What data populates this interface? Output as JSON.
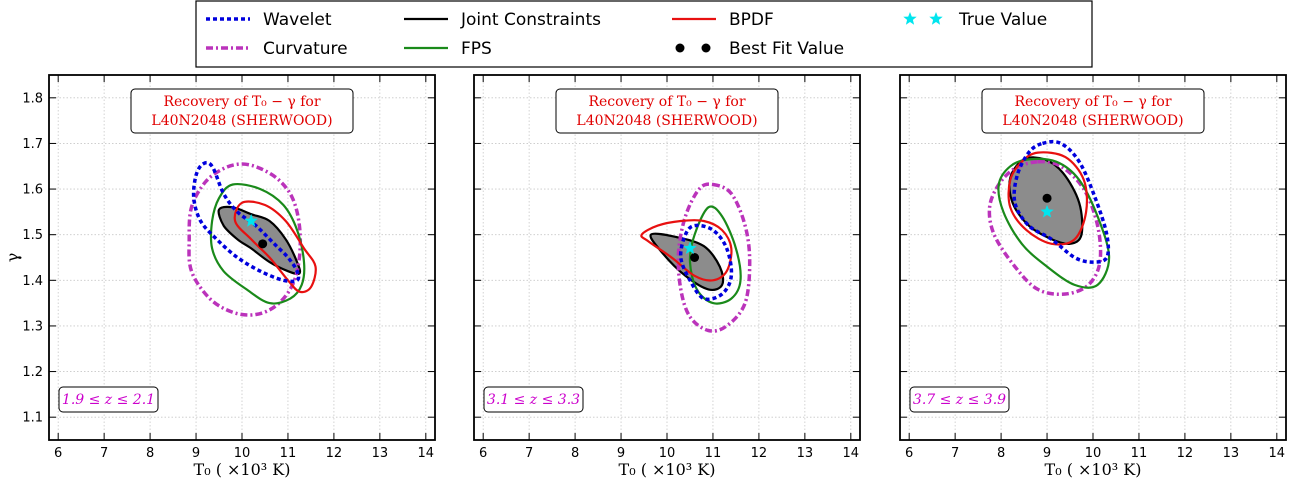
{
  "legend": {
    "entries": [
      {
        "label": "Wavelet",
        "color": "#0000dd",
        "style": "dotted"
      },
      {
        "label": "Curvature",
        "color": "#bb33bb",
        "style": "dashdot"
      },
      {
        "label": "Joint Constraints",
        "color": "#000000",
        "style": "solid"
      },
      {
        "label": "FPS",
        "color": "#1a8a1a",
        "style": "solid"
      },
      {
        "label": "BPDF",
        "color": "#e81010",
        "style": "solid"
      },
      {
        "label": "Best Fit Value",
        "color": "#000000",
        "style": "dot"
      },
      {
        "label": "True Value",
        "color": "#00e5ee",
        "style": "star"
      }
    ]
  },
  "chart_data": [
    {
      "type": "scatter",
      "panel_title": "Recovery of T₀ − γ for\nL40N2048 (SHERWOOD)",
      "title_lines": [
        "Recovery of T₀ − γ for",
        "L40N2048 (SHERWOOD)"
      ],
      "redshift_label": "1.9 ≤ z ≤ 2.1",
      "xlabel": "T₀ ( ×10³ K)",
      "ylabel": "γ",
      "xlim": [
        5.8,
        14.2
      ],
      "ylim": [
        1.05,
        1.85
      ],
      "xticks": [
        "6",
        "7",
        "8",
        "9",
        "10",
        "11",
        "12",
        "13",
        "14"
      ],
      "yticks": [
        "1.1",
        "1.2",
        "1.3",
        "1.4",
        "1.5",
        "1.6",
        "1.7",
        "1.8"
      ],
      "grid": true,
      "best_fit": [
        10.45,
        1.48
      ],
      "true_value": [
        10.2,
        1.53
      ],
      "contours": {
        "wavelet": [
          [
            9.15,
            1.655
          ],
          [
            9.35,
            1.65
          ],
          [
            9.6,
            1.59
          ],
          [
            9.9,
            1.55
          ],
          [
            10.3,
            1.52
          ],
          [
            10.7,
            1.48
          ],
          [
            11.0,
            1.45
          ],
          [
            11.2,
            1.42
          ],
          [
            11.2,
            1.4
          ],
          [
            10.9,
            1.4
          ],
          [
            10.4,
            1.42
          ],
          [
            9.9,
            1.45
          ],
          [
            9.45,
            1.49
          ],
          [
            9.1,
            1.53
          ],
          [
            8.95,
            1.58
          ],
          [
            9.0,
            1.63
          ]
        ],
        "curvature": [
          [
            10.0,
            1.655
          ],
          [
            10.4,
            1.645
          ],
          [
            10.8,
            1.62
          ],
          [
            11.1,
            1.58
          ],
          [
            11.25,
            1.52
          ],
          [
            11.25,
            1.45
          ],
          [
            11.1,
            1.39
          ],
          [
            10.75,
            1.345
          ],
          [
            10.3,
            1.325
          ],
          [
            9.8,
            1.33
          ],
          [
            9.3,
            1.36
          ],
          [
            8.9,
            1.42
          ],
          [
            8.85,
            1.49
          ],
          [
            8.9,
            1.56
          ],
          [
            9.2,
            1.615
          ],
          [
            9.6,
            1.645
          ]
        ],
        "joint": [
          [
            9.5,
            1.555
          ],
          [
            9.8,
            1.56
          ],
          [
            10.2,
            1.545
          ],
          [
            10.6,
            1.53
          ],
          [
            10.95,
            1.49
          ],
          [
            11.2,
            1.44
          ],
          [
            11.25,
            1.415
          ],
          [
            11.0,
            1.42
          ],
          [
            10.6,
            1.44
          ],
          [
            10.2,
            1.47
          ],
          [
            9.9,
            1.49
          ],
          [
            9.6,
            1.52
          ]
        ],
        "fps": [
          [
            9.8,
            1.61
          ],
          [
            10.4,
            1.6
          ],
          [
            10.9,
            1.565
          ],
          [
            11.2,
            1.51
          ],
          [
            11.35,
            1.44
          ],
          [
            11.3,
            1.39
          ],
          [
            11.05,
            1.36
          ],
          [
            10.6,
            1.35
          ],
          [
            10.1,
            1.38
          ],
          [
            9.6,
            1.42
          ],
          [
            9.35,
            1.47
          ],
          [
            9.35,
            1.53
          ],
          [
            9.5,
            1.58
          ]
        ],
        "bpdf": [
          [
            10.0,
            1.57
          ],
          [
            10.5,
            1.565
          ],
          [
            10.95,
            1.53
          ],
          [
            11.35,
            1.47
          ],
          [
            11.6,
            1.43
          ],
          [
            11.5,
            1.385
          ],
          [
            11.25,
            1.375
          ],
          [
            11.0,
            1.4
          ],
          [
            10.6,
            1.45
          ],
          [
            10.2,
            1.49
          ],
          [
            9.85,
            1.53
          ]
        ]
      }
    },
    {
      "type": "scatter",
      "panel_title": "Recovery of T₀ − γ for\nL40N2048 (SHERWOOD)",
      "title_lines": [
        "Recovery of T₀ − γ for",
        "L40N2048 (SHERWOOD)"
      ],
      "redshift_label": "3.1 ≤ z ≤ 3.3",
      "xlabel": "T₀ ( ×10³ K)",
      "ylabel": "",
      "xlim": [
        5.8,
        14.2
      ],
      "ylim": [
        1.05,
        1.85
      ],
      "xticks": [
        "6",
        "7",
        "8",
        "9",
        "10",
        "11",
        "12",
        "13",
        "14"
      ],
      "yticks": [],
      "grid": true,
      "best_fit": [
        10.6,
        1.45
      ],
      "true_value": [
        10.5,
        1.47
      ],
      "contours": {
        "wavelet": [
          [
            10.6,
            1.52
          ],
          [
            11.0,
            1.51
          ],
          [
            11.3,
            1.47
          ],
          [
            11.4,
            1.41
          ],
          [
            11.2,
            1.37
          ],
          [
            10.8,
            1.36
          ],
          [
            10.5,
            1.4
          ],
          [
            10.3,
            1.45
          ],
          [
            10.4,
            1.5
          ]
        ],
        "curvature": [
          [
            11.0,
            1.61
          ],
          [
            11.4,
            1.59
          ],
          [
            11.7,
            1.52
          ],
          [
            11.8,
            1.44
          ],
          [
            11.7,
            1.35
          ],
          [
            11.3,
            1.3
          ],
          [
            10.9,
            1.29
          ],
          [
            10.5,
            1.32
          ],
          [
            10.3,
            1.38
          ],
          [
            10.25,
            1.46
          ],
          [
            10.4,
            1.54
          ],
          [
            10.7,
            1.6
          ]
        ],
        "joint": [
          [
            9.65,
            1.5
          ],
          [
            10.2,
            1.495
          ],
          [
            10.8,
            1.475
          ],
          [
            11.15,
            1.43
          ],
          [
            11.2,
            1.39
          ],
          [
            10.9,
            1.38
          ],
          [
            10.4,
            1.41
          ],
          [
            9.9,
            1.46
          ]
        ],
        "fps": [
          [
            10.9,
            1.56
          ],
          [
            11.2,
            1.54
          ],
          [
            11.5,
            1.47
          ],
          [
            11.6,
            1.4
          ],
          [
            11.4,
            1.36
          ],
          [
            11.0,
            1.35
          ],
          [
            10.65,
            1.38
          ],
          [
            10.5,
            1.44
          ],
          [
            10.6,
            1.5
          ]
        ],
        "bpdf": [
          [
            9.45,
            1.5
          ],
          [
            9.8,
            1.52
          ],
          [
            10.3,
            1.53
          ],
          [
            10.8,
            1.53
          ],
          [
            11.2,
            1.51
          ],
          [
            11.4,
            1.47
          ],
          [
            11.3,
            1.42
          ],
          [
            11.0,
            1.4
          ],
          [
            10.6,
            1.41
          ],
          [
            10.1,
            1.45
          ],
          [
            9.6,
            1.485
          ]
        ]
      }
    },
    {
      "type": "scatter",
      "panel_title": "Recovery of T₀ − γ for\nL40N2048 (SHERWOOD)",
      "title_lines": [
        "Recovery of T₀ − γ for",
        "L40N2048 (SHERWOOD)"
      ],
      "redshift_label": "3.7 ≤ z ≤ 3.9",
      "xlabel": "T₀ ( ×10³ K)",
      "ylabel": "",
      "xlim": [
        5.8,
        14.2
      ],
      "ylim": [
        1.05,
        1.85
      ],
      "xticks": [
        "6",
        "7",
        "8",
        "9",
        "10",
        "11",
        "12",
        "13",
        "14"
      ],
      "yticks": [],
      "grid": true,
      "best_fit": [
        9.0,
        1.58
      ],
      "true_value": [
        9.0,
        1.55
      ],
      "contours": {
        "wavelet": [
          [
            8.9,
            1.7
          ],
          [
            9.3,
            1.7
          ],
          [
            9.7,
            1.66
          ],
          [
            10.05,
            1.58
          ],
          [
            10.3,
            1.5
          ],
          [
            10.3,
            1.45
          ],
          [
            10.0,
            1.44
          ],
          [
            9.6,
            1.45
          ],
          [
            9.1,
            1.49
          ],
          [
            8.6,
            1.52
          ],
          [
            8.3,
            1.57
          ],
          [
            8.35,
            1.63
          ],
          [
            8.6,
            1.68
          ]
        ],
        "curvature": [
          [
            8.8,
            1.66
          ],
          [
            9.3,
            1.65
          ],
          [
            9.8,
            1.6
          ],
          [
            10.1,
            1.52
          ],
          [
            10.15,
            1.44
          ],
          [
            9.9,
            1.39
          ],
          [
            9.4,
            1.37
          ],
          [
            8.8,
            1.38
          ],
          [
            8.3,
            1.43
          ],
          [
            7.85,
            1.5
          ],
          [
            7.75,
            1.56
          ],
          [
            7.95,
            1.61
          ],
          [
            8.3,
            1.645
          ]
        ],
        "joint": [
          [
            8.5,
            1.665
          ],
          [
            8.95,
            1.665
          ],
          [
            9.35,
            1.635
          ],
          [
            9.7,
            1.57
          ],
          [
            9.75,
            1.5
          ],
          [
            9.5,
            1.48
          ],
          [
            9.1,
            1.49
          ],
          [
            8.6,
            1.52
          ],
          [
            8.25,
            1.57
          ],
          [
            8.2,
            1.625
          ]
        ],
        "fps": [
          [
            8.6,
            1.665
          ],
          [
            9.2,
            1.66
          ],
          [
            9.7,
            1.62
          ],
          [
            10.1,
            1.54
          ],
          [
            10.35,
            1.45
          ],
          [
            10.1,
            1.39
          ],
          [
            9.6,
            1.39
          ],
          [
            9.0,
            1.43
          ],
          [
            8.45,
            1.48
          ],
          [
            8.05,
            1.55
          ],
          [
            7.95,
            1.61
          ],
          [
            8.2,
            1.65
          ]
        ],
        "bpdf": [
          [
            8.8,
            1.68
          ],
          [
            9.4,
            1.67
          ],
          [
            9.8,
            1.62
          ],
          [
            9.85,
            1.55
          ],
          [
            9.6,
            1.49
          ],
          [
            9.1,
            1.48
          ],
          [
            8.55,
            1.51
          ],
          [
            8.2,
            1.56
          ],
          [
            8.2,
            1.62
          ],
          [
            8.45,
            1.66
          ]
        ]
      }
    }
  ]
}
